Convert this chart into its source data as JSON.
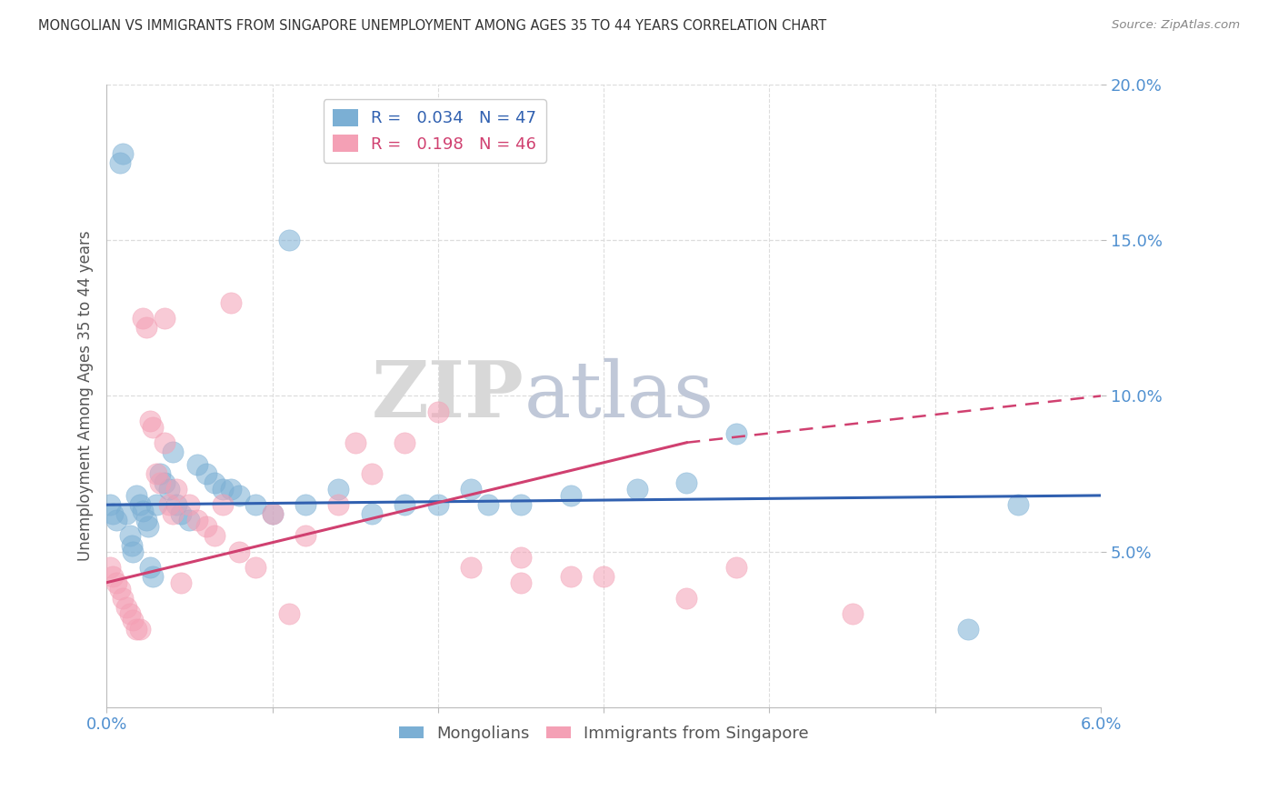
{
  "title": "MONGOLIAN VS IMMIGRANTS FROM SINGAPORE UNEMPLOYMENT AMONG AGES 35 TO 44 YEARS CORRELATION CHART",
  "source": "Source: ZipAtlas.com",
  "ylabel": "Unemployment Among Ages 35 to 44 years",
  "xlim": [
    0.0,
    6.0
  ],
  "ylim": [
    0.0,
    20.0
  ],
  "yticks": [
    5.0,
    10.0,
    15.0,
    20.0
  ],
  "ytick_labels": [
    "5.0%",
    "10.0%",
    "15.0%",
    "20.0%"
  ],
  "xtick_left": "0.0%",
  "xtick_right": "6.0%",
  "mongolians_color": "#7bafd4",
  "singapore_color": "#f4a0b5",
  "mongolians_line_color": "#3060b0",
  "singapore_line_color": "#d04070",
  "legend1_label": "R =   0.034   N = 47",
  "legend2_label": "R =   0.198   N = 46",
  "legend1_color": "#3060b0",
  "legend2_color": "#d04070",
  "bottom_legend1": "Mongolians",
  "bottom_legend2": "Immigrants from Singapore",
  "mongo_x": [
    0.02,
    0.04,
    0.06,
    0.08,
    0.1,
    0.12,
    0.14,
    0.15,
    0.16,
    0.18,
    0.2,
    0.22,
    0.24,
    0.25,
    0.26,
    0.28,
    0.3,
    0.32,
    0.35,
    0.38,
    0.4,
    0.42,
    0.45,
    0.5,
    0.55,
    0.6,
    0.65,
    0.7,
    0.75,
    0.8,
    0.9,
    1.0,
    1.2,
    1.4,
    1.6,
    1.8,
    2.0,
    2.2,
    2.5,
    2.8,
    3.2,
    3.8,
    5.2,
    5.5,
    3.5,
    2.3,
    1.1
  ],
  "mongo_y": [
    6.5,
    6.2,
    6.0,
    17.5,
    17.8,
    6.2,
    5.5,
    5.2,
    5.0,
    6.8,
    6.5,
    6.3,
    6.0,
    5.8,
    4.5,
    4.2,
    6.5,
    7.5,
    7.2,
    7.0,
    8.2,
    6.5,
    6.2,
    6.0,
    7.8,
    7.5,
    7.2,
    7.0,
    7.0,
    6.8,
    6.5,
    6.2,
    6.5,
    7.0,
    6.2,
    6.5,
    6.5,
    7.0,
    6.5,
    6.8,
    7.0,
    8.8,
    2.5,
    6.5,
    7.2,
    6.5,
    15.0
  ],
  "sing_x": [
    0.02,
    0.04,
    0.06,
    0.08,
    0.1,
    0.12,
    0.14,
    0.16,
    0.18,
    0.2,
    0.22,
    0.24,
    0.26,
    0.28,
    0.3,
    0.32,
    0.35,
    0.38,
    0.4,
    0.45,
    0.5,
    0.55,
    0.6,
    0.65,
    0.7,
    0.8,
    0.9,
    1.0,
    1.2,
    1.4,
    1.6,
    1.8,
    2.0,
    2.2,
    2.5,
    2.8,
    3.0,
    3.5,
    4.5,
    0.75,
    0.42,
    1.1,
    0.35,
    1.5,
    3.8,
    2.5
  ],
  "sing_y": [
    4.5,
    4.2,
    4.0,
    3.8,
    3.5,
    3.2,
    3.0,
    2.8,
    2.5,
    2.5,
    12.5,
    12.2,
    9.2,
    9.0,
    7.5,
    7.2,
    8.5,
    6.5,
    6.2,
    4.0,
    6.5,
    6.0,
    5.8,
    5.5,
    6.5,
    5.0,
    4.5,
    6.2,
    5.5,
    6.5,
    7.5,
    8.5,
    9.5,
    4.5,
    4.0,
    4.2,
    4.2,
    3.5,
    3.0,
    13.0,
    7.0,
    3.0,
    12.5,
    8.5,
    4.5,
    4.8
  ]
}
